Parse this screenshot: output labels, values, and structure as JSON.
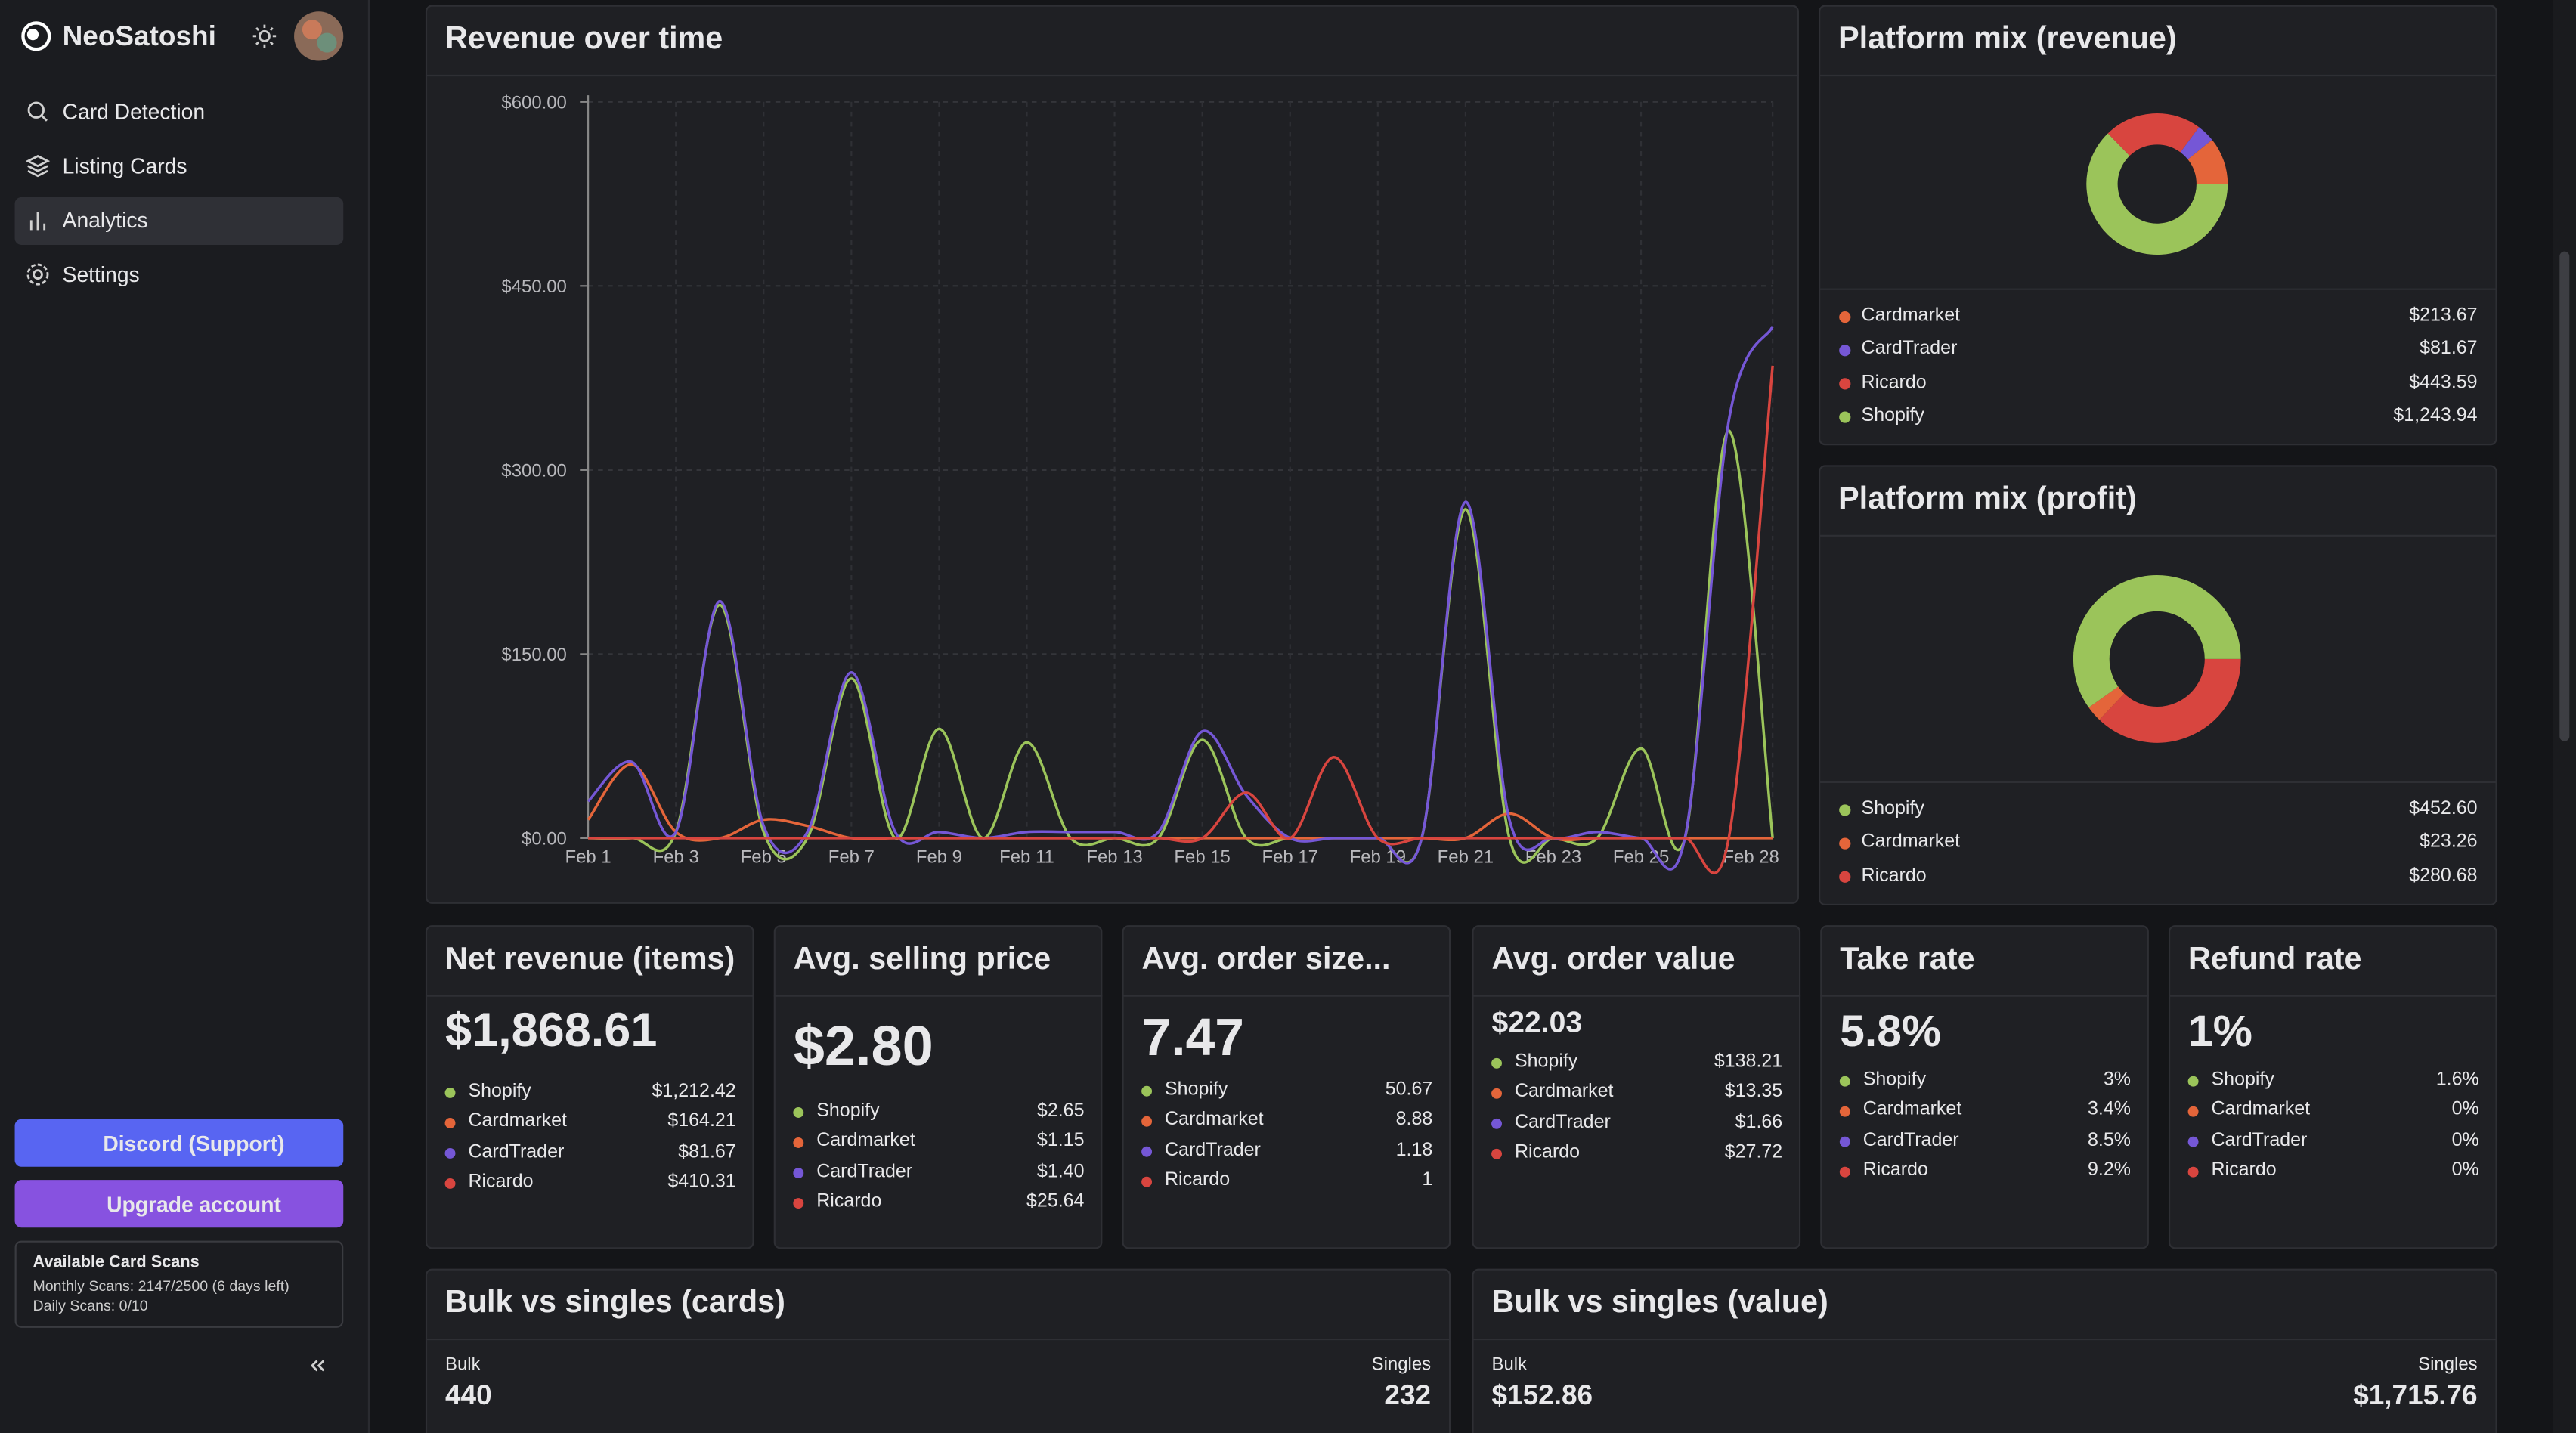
{
  "sidebar": {
    "brand": "NeoSatoshi",
    "nav": [
      "Card Detection",
      "Listing Cards",
      "Analytics",
      "Settings"
    ],
    "discord": "Discord (Support)",
    "upgrade": "Upgrade account",
    "scans": {
      "title": "Available Card Scans",
      "monthly": "Monthly Scans: 2147/2500 (6 days left)",
      "daily": "Daily Scans: 0/10"
    }
  },
  "chart_data": [
    {
      "type": "line",
      "title": "Revenue over time",
      "categories": [
        "Feb 1",
        null,
        "Feb 3",
        null,
        "Feb 5",
        null,
        "Feb 7",
        null,
        "Feb 9",
        null,
        "Feb 11",
        null,
        "Feb 13",
        null,
        "Feb 15",
        null,
        "Feb 17",
        null,
        "Feb 19",
        null,
        "Feb 21",
        null,
        "Feb 23",
        null,
        "Feb 25",
        null,
        null,
        "Feb 28"
      ],
      "ylim": [
        0,
        600
      ],
      "yticks": [
        {
          "value": 0,
          "label": "$0.00"
        },
        {
          "value": 150,
          "label": "$150.00"
        },
        {
          "value": 300,
          "label": "$300.00"
        },
        {
          "value": 450,
          "label": "$450.00"
        },
        {
          "value": 600,
          "label": "$600.00"
        }
      ],
      "grid": true,
      "series": [
        {
          "color": "#9bc45a",
          "values": [
            0,
            0,
            5,
            190,
            5,
            0,
            130,
            0,
            89,
            0,
            78,
            0,
            0,
            0,
            80,
            0,
            0,
            0,
            0,
            0,
            268,
            0,
            0,
            0,
            73,
            0,
            332,
            0
          ]
        },
        {
          "color": "#e4653a",
          "values": [
            15,
            60,
            5,
            0,
            15,
            10,
            0,
            0,
            0,
            0,
            0,
            0,
            0,
            0,
            0,
            0,
            0,
            0,
            0,
            0,
            0,
            20,
            0,
            0,
            0,
            0,
            0,
            0
          ]
        },
        {
          "color": "#7557d6",
          "values": [
            30,
            62,
            5,
            193,
            10,
            5,
            135,
            5,
            5,
            0,
            5,
            5,
            5,
            5,
            87,
            35,
            0,
            0,
            0,
            0,
            274,
            15,
            0,
            5,
            0,
            0,
            340,
            417
          ]
        },
        {
          "color": "#d8453f",
          "values": [
            0,
            0,
            0,
            0,
            0,
            0,
            0,
            0,
            0,
            0,
            0,
            0,
            0,
            0,
            0,
            37,
            0,
            66,
            0,
            0,
            0,
            0,
            0,
            0,
            0,
            0,
            0,
            385
          ]
        }
      ]
    },
    {
      "type": "pie",
      "title": "Platform mix (revenue)",
      "categories": [
        "Cardmarket",
        "CardTrader",
        "Ricardo",
        "Shopify"
      ],
      "values": [
        213.67,
        81.67,
        443.59,
        1243.94
      ],
      "value_labels": [
        "$213.67",
        "$81.67",
        "$443.59",
        "$1,243.94"
      ],
      "colors": [
        "#e4653a",
        "#7557d6",
        "#d8453f",
        "#9bc45a"
      ]
    },
    {
      "type": "pie",
      "title": "Platform mix (profit)",
      "categories": [
        "Shopify",
        "Cardmarket",
        "Ricardo"
      ],
      "values": [
        452.6,
        23.26,
        280.68
      ],
      "value_labels": [
        "$452.60",
        "$23.26",
        "$280.68"
      ],
      "colors": [
        "#9bc45a",
        "#e4653a",
        "#d8453f"
      ]
    }
  ],
  "kpis": [
    {
      "title": "Net revenue (items)",
      "value": "$1,868.61",
      "rows": [
        {
          "name": "Shopify",
          "value": "$1,212.42",
          "color": "#9bc45a"
        },
        {
          "name": "Cardmarket",
          "value": "$164.21",
          "color": "#e4653a"
        },
        {
          "name": "CardTrader",
          "value": "$81.67",
          "color": "#7557d6"
        },
        {
          "name": "Ricardo",
          "value": "$410.31",
          "color": "#d8453f"
        }
      ]
    },
    {
      "title": "Avg. selling price",
      "value": "$2.80",
      "rows": [
        {
          "name": "Shopify",
          "value": "$2.65",
          "color": "#9bc45a"
        },
        {
          "name": "Cardmarket",
          "value": "$1.15",
          "color": "#e4653a"
        },
        {
          "name": "CardTrader",
          "value": "$1.40",
          "color": "#7557d6"
        },
        {
          "name": "Ricardo",
          "value": "$25.64",
          "color": "#d8453f"
        }
      ]
    },
    {
      "title": "Avg. order size...",
      "value": "7.47",
      "rows": [
        {
          "name": "Shopify",
          "value": "50.67",
          "color": "#9bc45a"
        },
        {
          "name": "Cardmarket",
          "value": "8.88",
          "color": "#e4653a"
        },
        {
          "name": "CardTrader",
          "value": "1.18",
          "color": "#7557d6"
        },
        {
          "name": "Ricardo",
          "value": "1",
          "color": "#d8453f"
        }
      ]
    },
    {
      "title": "Avg. order value",
      "value": "$22.03",
      "rows": [
        {
          "name": "Shopify",
          "value": "$138.21",
          "color": "#9bc45a"
        },
        {
          "name": "Cardmarket",
          "value": "$13.35",
          "color": "#e4653a"
        },
        {
          "name": "CardTrader",
          "value": "$1.66",
          "color": "#7557d6"
        },
        {
          "name": "Ricardo",
          "value": "$27.72",
          "color": "#d8453f"
        }
      ]
    },
    {
      "title": "Take rate",
      "value": "5.8%",
      "rows": [
        {
          "name": "Shopify",
          "value": "3%",
          "color": "#9bc45a"
        },
        {
          "name": "Cardmarket",
          "value": "3.4%",
          "color": "#e4653a"
        },
        {
          "name": "CardTrader",
          "value": "8.5%",
          "color": "#7557d6"
        },
        {
          "name": "Ricardo",
          "value": "9.2%",
          "color": "#d8453f"
        }
      ]
    },
    {
      "title": "Refund rate",
      "value": "1%",
      "rows": [
        {
          "name": "Shopify",
          "value": "1.6%",
          "color": "#9bc45a"
        },
        {
          "name": "Cardmarket",
          "value": "0%",
          "color": "#e4653a"
        },
        {
          "name": "CardTrader",
          "value": "0%",
          "color": "#7557d6"
        },
        {
          "name": "Ricardo",
          "value": "0%",
          "color": "#d8453f"
        }
      ]
    }
  ],
  "bulk": [
    {
      "title": "Bulk vs singles (cards)",
      "left_label": "Bulk",
      "left_value": "440",
      "right_label": "Singles",
      "right_value": "232"
    },
    {
      "title": "Bulk vs singles (value)",
      "left_label": "Bulk",
      "left_value": "$152.86",
      "right_label": "Singles",
      "right_value": "$1,715.76"
    }
  ]
}
